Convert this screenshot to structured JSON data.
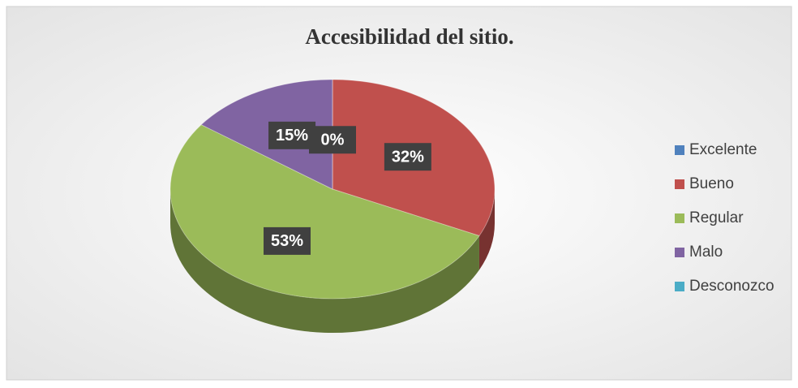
{
  "chart_data": {
    "type": "pie",
    "title": "Accesibilidad del sitio.",
    "categories": [
      "Excelente",
      "Bueno",
      "Regular",
      "Malo",
      "Desconozco"
    ],
    "values": [
      0,
      32,
      53,
      15,
      0
    ],
    "value_labels": [
      "0%",
      "32%",
      "53%",
      "15%",
      null
    ],
    "colors": [
      "#4f81bd",
      "#c0504d",
      "#9bbb59",
      "#8064a2",
      "#4bacc6"
    ],
    "legend": "right"
  }
}
